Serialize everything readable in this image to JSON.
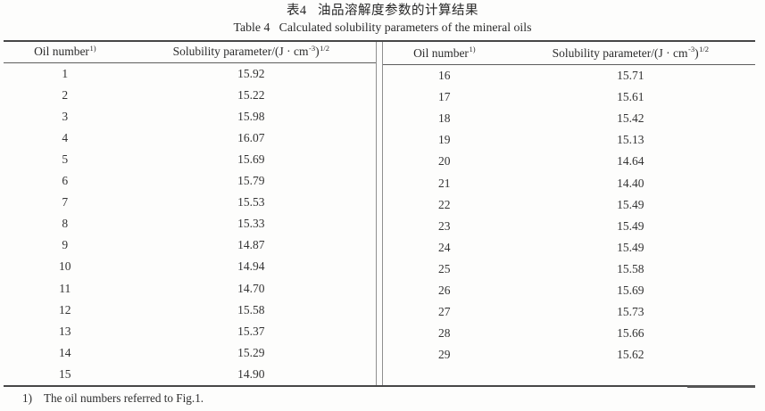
{
  "page": {
    "title_zh": "表4   油品溶解度参数的计算结果",
    "title_en": "Table 4   Calculated solubility parameters of the mineral oils"
  },
  "table": {
    "columns": {
      "oil_label": "Oil number",
      "oil_sup": "1)",
      "param_pre": "Solubility parameter/(J · cm",
      "param_sup_exp": "-3",
      "param_close": ")",
      "param_sup_root": "1/2"
    },
    "left_rows": [
      {
        "oil": "1",
        "value": "15.92"
      },
      {
        "oil": "2",
        "value": "15.22"
      },
      {
        "oil": "3",
        "value": "15.98"
      },
      {
        "oil": "4",
        "value": "16.07"
      },
      {
        "oil": "5",
        "value": "15.69"
      },
      {
        "oil": "6",
        "value": "15.79"
      },
      {
        "oil": "7",
        "value": "15.53"
      },
      {
        "oil": "8",
        "value": "15.33"
      },
      {
        "oil": "9",
        "value": "14.87"
      },
      {
        "oil": "10",
        "value": "14.94"
      },
      {
        "oil": "11",
        "value": "14.70"
      },
      {
        "oil": "12",
        "value": "15.58"
      },
      {
        "oil": "13",
        "value": "15.37"
      },
      {
        "oil": "14",
        "value": "15.29"
      },
      {
        "oil": "15",
        "value": "14.90"
      }
    ],
    "right_rows": [
      {
        "oil": "16",
        "value": "15.71"
      },
      {
        "oil": "17",
        "value": "15.61"
      },
      {
        "oil": "18",
        "value": "15.42"
      },
      {
        "oil": "19",
        "value": "15.13"
      },
      {
        "oil": "20",
        "value": "14.64"
      },
      {
        "oil": "21",
        "value": "14.40"
      },
      {
        "oil": "22",
        "value": "15.49"
      },
      {
        "oil": "23",
        "value": "15.49"
      },
      {
        "oil": "24",
        "value": "15.49"
      },
      {
        "oil": "25",
        "value": "15.58"
      },
      {
        "oil": "26",
        "value": "15.69"
      },
      {
        "oil": "27",
        "value": "15.73"
      },
      {
        "oil": "28",
        "value": "15.66"
      },
      {
        "oil": "29",
        "value": "15.62"
      }
    ],
    "footnote_marker": "1)",
    "footnote_text": "The oil numbers referred to Fig.1."
  }
}
